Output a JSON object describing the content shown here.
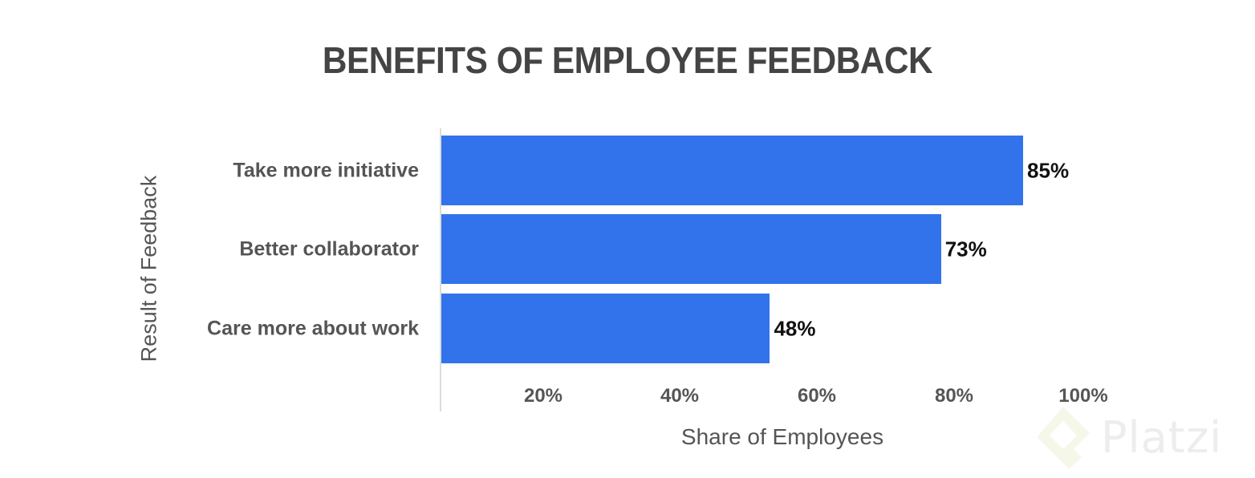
{
  "chart_data": {
    "type": "bar",
    "orientation": "horizontal",
    "title": "BENEFITS OF EMPLOYEE FEEDBACK",
    "xlabel": "Share of Employees",
    "ylabel": "Result of Feedback",
    "categories": [
      "Take more initiative",
      "Better collaborator",
      "Care more about work"
    ],
    "values": [
      85,
      73,
      48
    ],
    "value_labels": [
      "85%",
      "73%",
      "48%"
    ],
    "unit": "%",
    "xticks": [
      "20%",
      "40%",
      "60%",
      "80%",
      "100%"
    ],
    "xlim": [
      0,
      100
    ],
    "grid": false,
    "legend": null,
    "bar_color": "#3273eb"
  },
  "watermark": {
    "text": "Platzi",
    "color": "#ececec",
    "icon": "platzi-logo-icon"
  }
}
